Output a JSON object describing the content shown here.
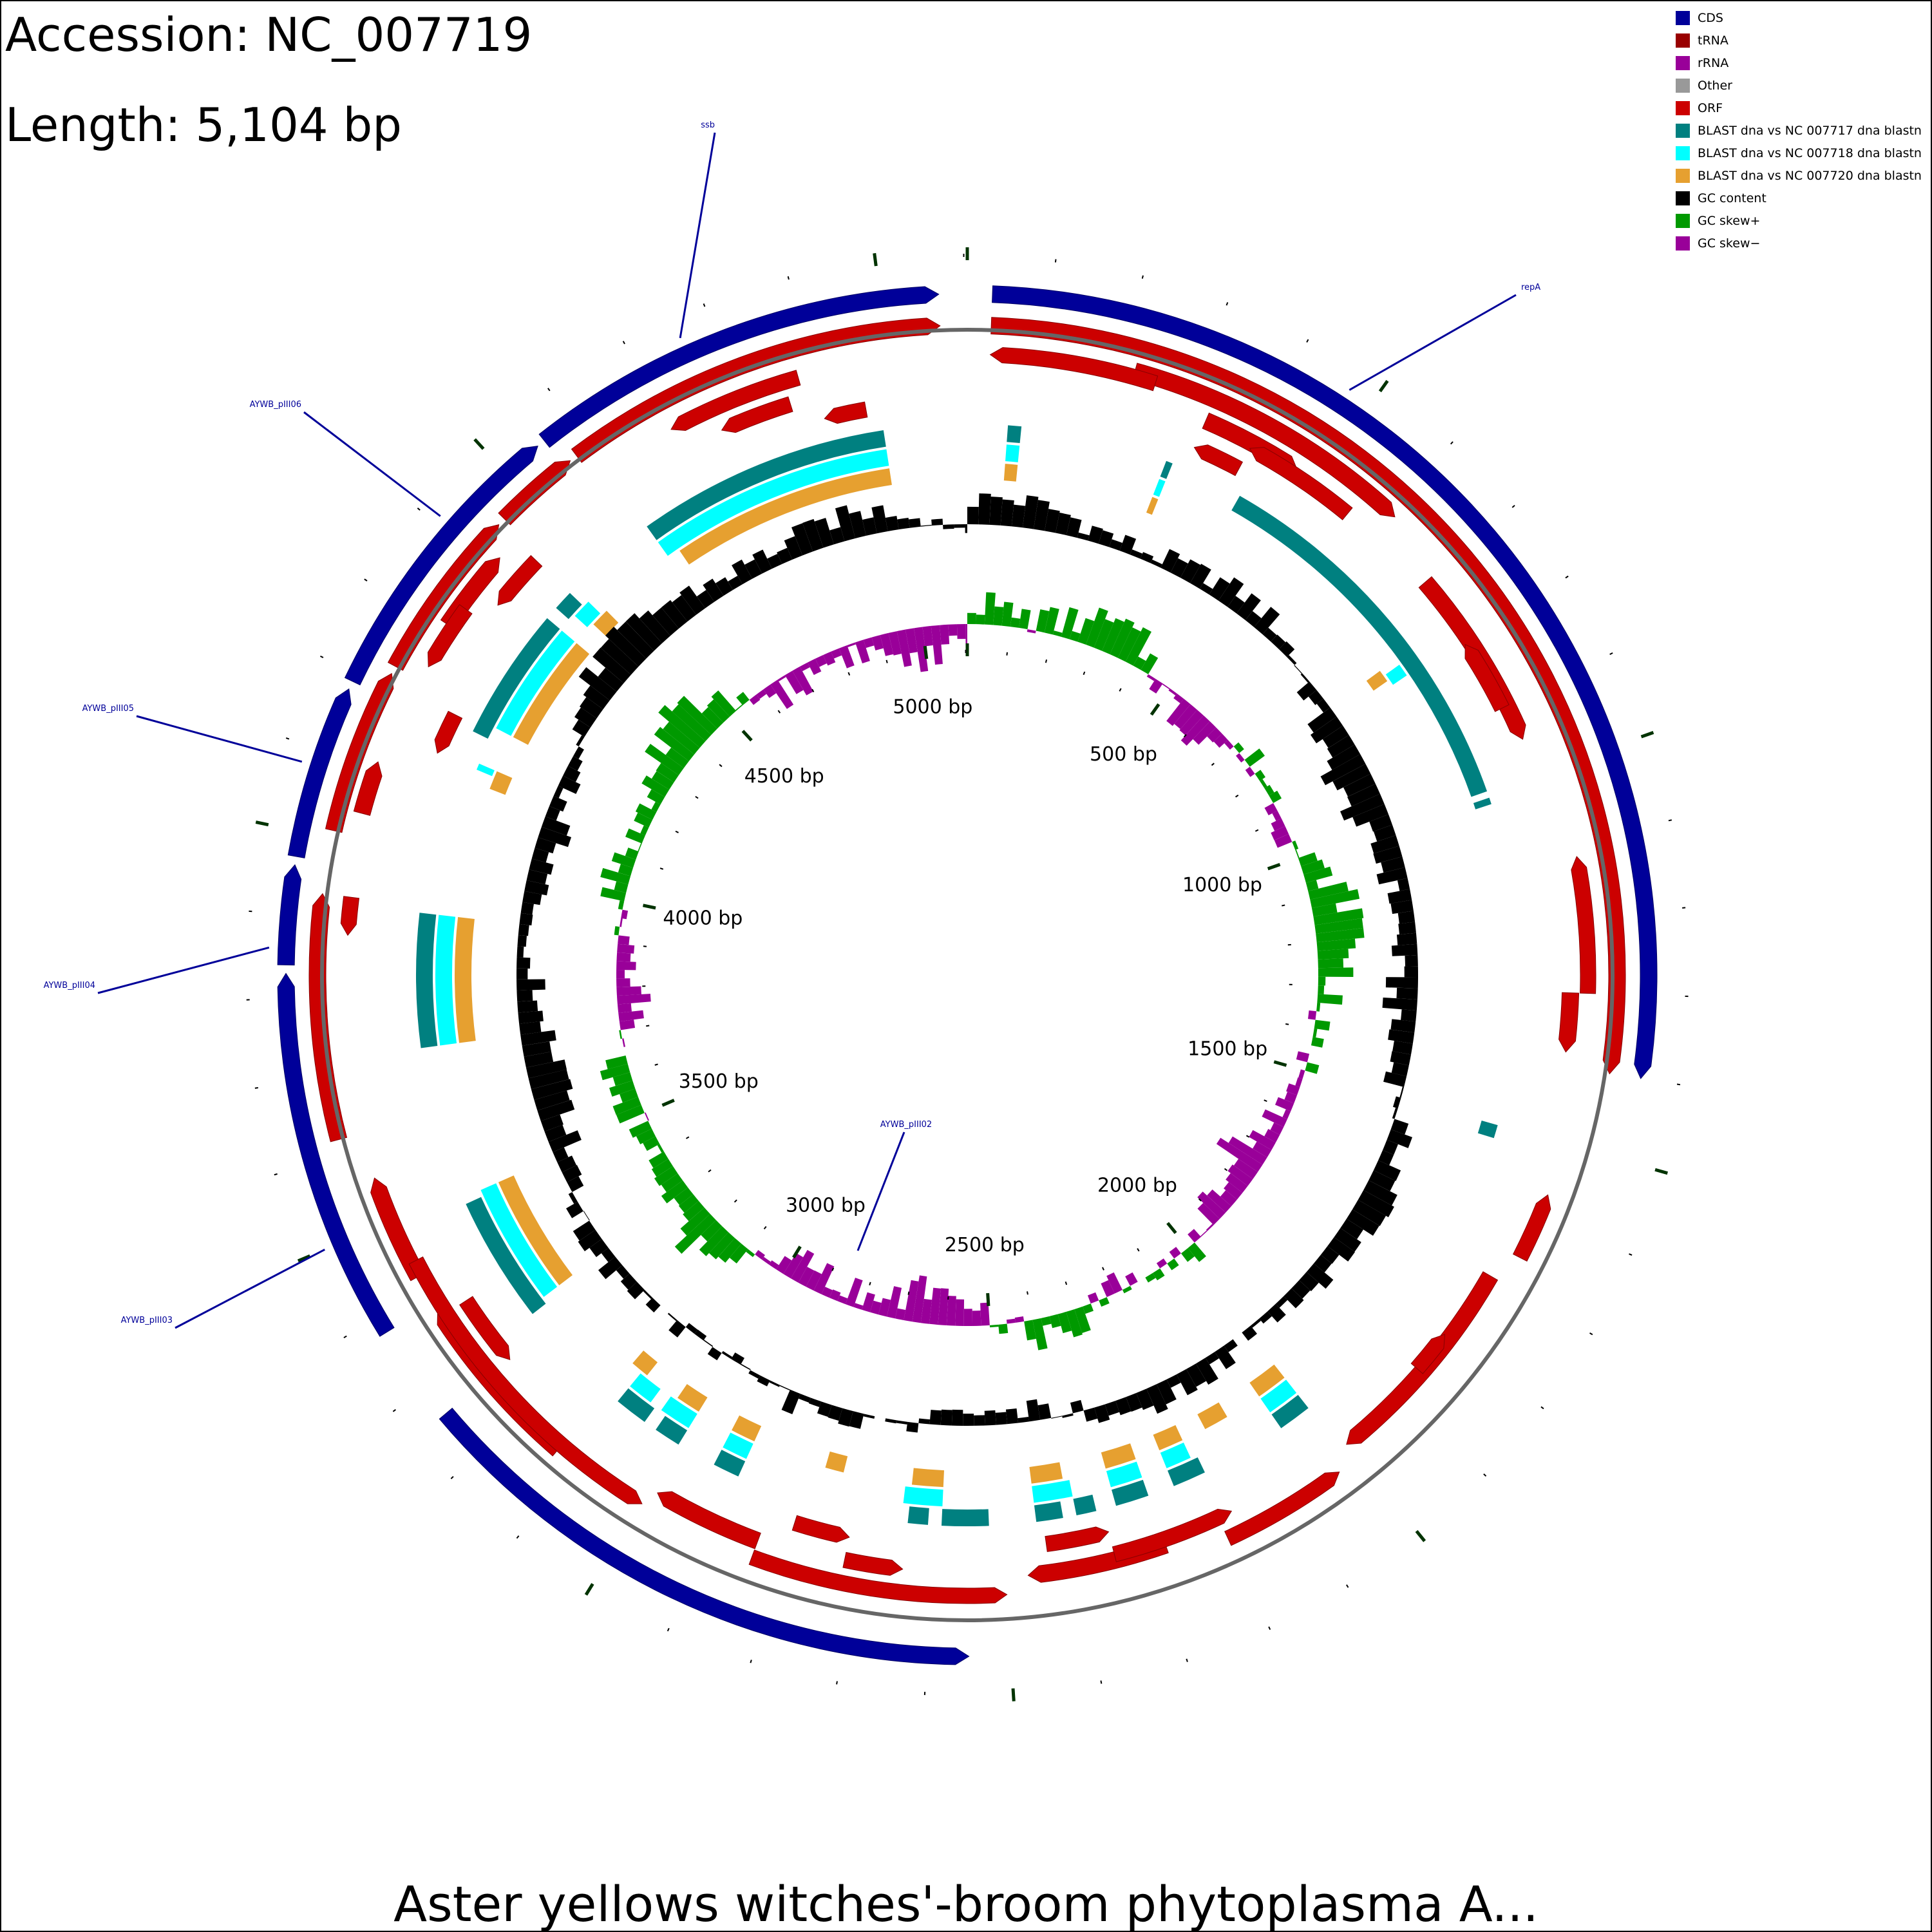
{
  "header": {
    "accession_label": "Accession: NC_007719",
    "length_label": "Length: 5,104 bp"
  },
  "footer": {
    "title": "Aster yellows witches'-broom phytoplasma A..."
  },
  "legend": {
    "items": [
      {
        "label": "CDS",
        "color": "#000099"
      },
      {
        "label": "tRNA",
        "color": "#990000"
      },
      {
        "label": "rRNA",
        "color": "#990099"
      },
      {
        "label": "Other",
        "color": "#999999"
      },
      {
        "label": "ORF",
        "color": "#cc0000"
      },
      {
        "label": "BLAST dna vs NC 007717 dna blastn",
        "color": "#008080"
      },
      {
        "label": "BLAST dna vs NC 007718 dna blastn",
        "color": "#00ffff"
      },
      {
        "label": "BLAST dna vs NC 007720 dna blastn",
        "color": "#e6a030"
      },
      {
        "label": "GC content",
        "color": "#000000"
      },
      {
        "label": "GC skew+",
        "color": "#009900"
      },
      {
        "label": "GC skew−",
        "color": "#990099"
      }
    ]
  },
  "chart_data": {
    "type": "circular_genome_map",
    "genome_length_bp": 5104,
    "tick_labels": [
      {
        "bp": 500,
        "label": "500 bp"
      },
      {
        "bp": 1000,
        "label": "1000 bp"
      },
      {
        "bp": 1500,
        "label": "1500 bp"
      },
      {
        "bp": 2000,
        "label": "2000 bp"
      },
      {
        "bp": 2500,
        "label": "2500 bp"
      },
      {
        "bp": 3000,
        "label": "3000 bp"
      },
      {
        "bp": 3500,
        "label": "3500 bp"
      },
      {
        "bp": 4000,
        "label": "4000 bp"
      },
      {
        "bp": 4500,
        "label": "4500 bp"
      },
      {
        "bp": 5000,
        "label": "5000 bp"
      }
    ],
    "gene_labels": [
      {
        "label": "ssb",
        "bp": 4760
      },
      {
        "label": "repA",
        "bp": 470
      },
      {
        "label": "AYWB_pIII06",
        "bp": 4410
      },
      {
        "label": "AYWB_pIII05",
        "bp": 4080
      },
      {
        "label": "AYWB_pIII04",
        "bp": 3860
      },
      {
        "label": "AYWB_pIII03",
        "bp": 3500
      },
      {
        "label": "AYWB_pIII02",
        "bp": 2950
      }
    ],
    "cds": [
      {
        "start": 30,
        "end": 1400,
        "strand": 1,
        "name": "repA"
      },
      {
        "start": 4560,
        "end": 5070,
        "strand": 1,
        "name": "ssb"
      },
      {
        "start": 4190,
        "end": 4550,
        "strand": 1,
        "name": "AYWB_pIII06"
      },
      {
        "start": 3970,
        "end": 4180,
        "strand": 1,
        "name": "AYWB_pIII05"
      },
      {
        "start": 3840,
        "end": 3960,
        "strand": 1,
        "name": "AYWB_pIII04"
      },
      {
        "start": 3380,
        "end": 3830,
        "strand": 1,
        "name": "AYWB_pIII03"
      },
      {
        "start": 2550,
        "end": 3260,
        "strand": -1,
        "name": "AYWB_pIII02"
      }
    ],
    "orf_tracks": [
      [
        {
          "start": 30,
          "end": 1400,
          "strand": 1
        },
        {
          "start": 4580,
          "end": 5070,
          "strand": 1
        },
        {
          "start": 4460,
          "end": 4570,
          "strand": 1
        },
        {
          "start": 4230,
          "end": 4450,
          "strand": 1
        },
        {
          "start": 4010,
          "end": 4220,
          "strand": 1
        },
        {
          "start": 3620,
          "end": 3930,
          "strand": 1
        }
      ],
      [
        {
          "start": 220,
          "end": 610,
          "strand": 1
        },
        {
          "start": 4310,
          "end": 4420,
          "strand": 1
        },
        {
          "start": 4040,
          "end": 4110,
          "strand": 1
        },
        {
          "start": 3420,
          "end": 3560,
          "strand": 1
        },
        {
          "start": 3130,
          "end": 3370,
          "strand": 1
        }
      ],
      [
        {
          "start": 330,
          "end": 470,
          "strand": 1
        },
        {
          "start": 700,
          "end": 950,
          "strand": 1
        },
        {
          "start": 1300,
          "end": 1380,
          "strand": 1
        },
        {
          "start": 1700,
          "end": 2000,
          "strand": 1
        },
        {
          "start": 2280,
          "end": 2470,
          "strand": 1
        },
        {
          "start": 2840,
          "end": 2990,
          "strand": 1
        }
      ]
    ],
    "orf_tracks_minus": [
      [
        {
          "start": 30,
          "end": 250,
          "strand": -1
        },
        {
          "start": 1120,
          "end": 1300,
          "strand": -1
        },
        {
          "start": 1570,
          "end": 1660,
          "strand": -1
        },
        {
          "start": 2030,
          "end": 2200,
          "strand": -1
        },
        {
          "start": 2500,
          "end": 2840,
          "strand": -1
        },
        {
          "start": 3000,
          "end": 3440,
          "strand": -1
        },
        {
          "start": 3880,
          "end": 3930,
          "strand": -1
        },
        {
          "start": 4250,
          "end": 4340,
          "strand": -1
        },
        {
          "start": 4700,
          "end": 4880,
          "strand": -1
        }
      ],
      [
        {
          "start": 400,
          "end": 560,
          "strand": -1
        },
        {
          "start": 800,
          "end": 900,
          "strand": -1
        },
        {
          "start": 1800,
          "end": 1860,
          "strand": -1
        },
        {
          "start": 2180,
          "end": 2350,
          "strand": -1
        },
        {
          "start": 2640,
          "end": 2720,
          "strand": -1
        },
        {
          "start": 3260,
          "end": 3360,
          "strand": -1
        },
        {
          "start": 4370,
          "end": 4450,
          "strand": -1
        },
        {
          "start": 4760,
          "end": 4860,
          "strand": -1
        }
      ],
      [
        {
          "start": 330,
          "end": 400,
          "strand": -1
        },
        {
          "start": 2350,
          "end": 2440,
          "strand": -1
        },
        {
          "start": 2720,
          "end": 2800,
          "strand": -1
        },
        {
          "start": 4150,
          "end": 4210,
          "strand": -1
        },
        {
          "start": 4900,
          "end": 4960,
          "strand": -1
        }
      ]
    ],
    "blast_hits": {
      "NC_007717": [
        {
          "start": 60,
          "end": 80
        },
        {
          "start": 300,
          "end": 310
        },
        {
          "start": 420,
          "end": 1000
        },
        {
          "start": 1010,
          "end": 1020
        },
        {
          "start": 1500,
          "end": 1520
        },
        {
          "start": 2010,
          "end": 2060
        },
        {
          "start": 2190,
          "end": 2240
        },
        {
          "start": 2280,
          "end": 2330
        },
        {
          "start": 2360,
          "end": 2390
        },
        {
          "start": 2410,
          "end": 2450
        },
        {
          "start": 2520,
          "end": 2590
        },
        {
          "start": 2610,
          "end": 2640
        },
        {
          "start": 2900,
          "end": 2940
        },
        {
          "start": 3000,
          "end": 3040
        },
        {
          "start": 3060,
          "end": 3110
        },
        {
          "start": 3290,
          "end": 3480
        },
        {
          "start": 3720,
          "end": 3920
        },
        {
          "start": 4200,
          "end": 4400
        },
        {
          "start": 4420,
          "end": 4450
        },
        {
          "start": 4600,
          "end": 4980
        }
      ],
      "NC_007718": [
        {
          "start": 60,
          "end": 80
        },
        {
          "start": 300,
          "end": 310
        },
        {
          "start": 770,
          "end": 790
        },
        {
          "start": 2010,
          "end": 2060
        },
        {
          "start": 2200,
          "end": 2240
        },
        {
          "start": 2280,
          "end": 2330
        },
        {
          "start": 2390,
          "end": 2450
        },
        {
          "start": 2590,
          "end": 2650
        },
        {
          "start": 2900,
          "end": 2940
        },
        {
          "start": 3000,
          "end": 3050
        },
        {
          "start": 3070,
          "end": 3110
        },
        {
          "start": 3300,
          "end": 3490
        },
        {
          "start": 3720,
          "end": 3920
        },
        {
          "start": 4150,
          "end": 4160
        },
        {
          "start": 4220,
          "end": 4400
        },
        {
          "start": 4430,
          "end": 4460
        },
        {
          "start": 4600,
          "end": 4980
        }
      ],
      "NC_007720": [
        {
          "start": 60,
          "end": 80
        },
        {
          "start": 300,
          "end": 310
        },
        {
          "start": 760,
          "end": 780
        },
        {
          "start": 2010,
          "end": 2060
        },
        {
          "start": 2120,
          "end": 2160
        },
        {
          "start": 2200,
          "end": 2240
        },
        {
          "start": 2280,
          "end": 2330
        },
        {
          "start": 2400,
          "end": 2450
        },
        {
          "start": 2590,
          "end": 2640
        },
        {
          "start": 2750,
          "end": 2780
        },
        {
          "start": 2900,
          "end": 2940
        },
        {
          "start": 3000,
          "end": 3040
        },
        {
          "start": 3100,
          "end": 3130
        },
        {
          "start": 3300,
          "end": 3490
        },
        {
          "start": 3720,
          "end": 3920
        },
        {
          "start": 4130,
          "end": 4160
        },
        {
          "start": 4220,
          "end": 4400
        },
        {
          "start": 4440,
          "end": 4470
        },
        {
          "start": 4620,
          "end": 4980
        }
      ]
    },
    "gc_content_window_bp": 20,
    "gc_skew_window_bp": 20
  }
}
